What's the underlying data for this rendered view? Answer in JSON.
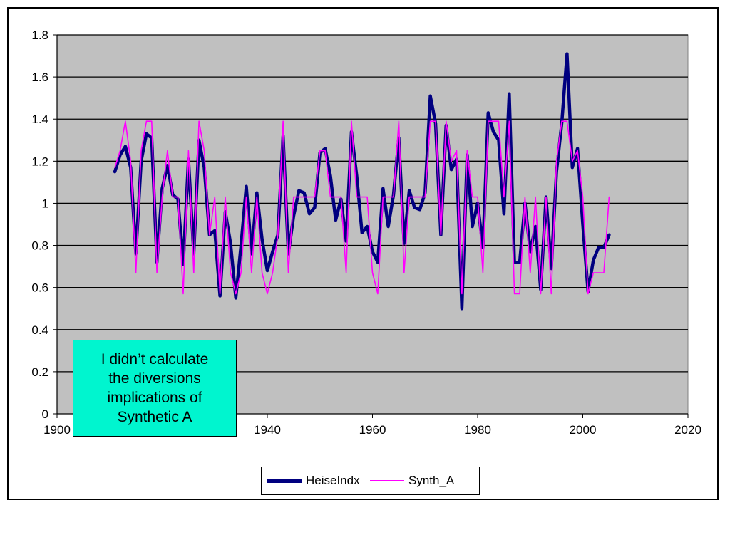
{
  "chart_data": {
    "type": "line",
    "xlim": [
      1900,
      2020
    ],
    "ylim": [
      0,
      1.8
    ],
    "x_ticks": [
      "1900",
      "1920",
      "1940",
      "1960",
      "1980",
      "2000",
      "2020"
    ],
    "y_ticks": [
      "0",
      "0.2",
      "0.4",
      "0.6",
      "0.8",
      "1",
      "1.2",
      "1.4",
      "1.6",
      "1.8"
    ],
    "grid": "horizontal",
    "plot_background": "#c0c0c0",
    "legend_position": "bottom",
    "series": [
      {
        "name": "HeiseIndx",
        "color": "#000080",
        "line_width": 4.5,
        "x": [
          1911,
          1912,
          1913,
          1914,
          1915,
          1916,
          1917,
          1918,
          1919,
          1920,
          1921,
          1922,
          1923,
          1924,
          1925,
          1926,
          1927,
          1928,
          1929,
          1930,
          1931,
          1932,
          1933,
          1934,
          1935,
          1936,
          1937,
          1938,
          1939,
          1940,
          1941,
          1942,
          1943,
          1944,
          1945,
          1946,
          1947,
          1948,
          1949,
          1950,
          1951,
          1952,
          1953,
          1954,
          1955,
          1956,
          1957,
          1958,
          1959,
          1960,
          1961,
          1962,
          1963,
          1964,
          1965,
          1966,
          1967,
          1968,
          1969,
          1970,
          1971,
          1972,
          1973,
          1974,
          1975,
          1976,
          1977,
          1978,
          1979,
          1980,
          1981,
          1982,
          1983,
          1984,
          1985,
          1986,
          1987,
          1988,
          1989,
          1990,
          1991,
          1992,
          1993,
          1994,
          1995,
          1996,
          1997,
          1998,
          1999,
          2000,
          2001,
          2002,
          2003,
          2004,
          2005
        ],
        "values": [
          1.15,
          1.23,
          1.27,
          1.17,
          0.76,
          1.2,
          1.33,
          1.31,
          0.72,
          1.07,
          1.18,
          1.04,
          1.02,
          0.71,
          1.21,
          0.76,
          1.3,
          1.17,
          0.85,
          0.87,
          0.56,
          0.96,
          0.81,
          0.55,
          0.8,
          1.08,
          0.76,
          1.05,
          0.83,
          0.68,
          0.77,
          0.85,
          1.32,
          0.76,
          0.94,
          1.06,
          1.05,
          0.95,
          0.98,
          1.24,
          1.26,
          1.13,
          0.92,
          1.02,
          0.82,
          1.34,
          1.13,
          0.86,
          0.89,
          0.77,
          0.72,
          1.07,
          0.89,
          1.04,
          1.31,
          0.81,
          1.06,
          0.98,
          0.97,
          1.05,
          1.51,
          1.38,
          0.85,
          1.37,
          1.16,
          1.21,
          0.5,
          1.23,
          0.89,
          1.0,
          0.79,
          1.43,
          1.34,
          1.3,
          0.95,
          1.52,
          0.72,
          0.72,
          1.0,
          0.77,
          0.89,
          0.59,
          1.03,
          0.69,
          1.15,
          1.38,
          1.71,
          1.17,
          1.26,
          0.9,
          0.58,
          0.73,
          0.79,
          0.79,
          0.85
        ]
      },
      {
        "name": "Synth_A",
        "color": "#ff00ff",
        "line_width": 1.6,
        "x": [
          1911,
          1912,
          1913,
          1914,
          1915,
          1916,
          1917,
          1918,
          1919,
          1920,
          1921,
          1922,
          1923,
          1924,
          1925,
          1926,
          1927,
          1928,
          1929,
          1930,
          1931,
          1932,
          1933,
          1934,
          1935,
          1936,
          1937,
          1938,
          1939,
          1940,
          1941,
          1942,
          1943,
          1944,
          1945,
          1946,
          1947,
          1948,
          1949,
          1950,
          1951,
          1952,
          1953,
          1954,
          1955,
          1956,
          1957,
          1958,
          1959,
          1960,
          1961,
          1962,
          1963,
          1964,
          1965,
          1966,
          1967,
          1968,
          1969,
          1970,
          1971,
          1972,
          1973,
          1974,
          1975,
          1976,
          1977,
          1978,
          1979,
          1980,
          1981,
          1982,
          1983,
          1984,
          1985,
          1986,
          1987,
          1988,
          1989,
          1990,
          1991,
          1992,
          1993,
          1994,
          1995,
          1996,
          1997,
          1998,
          1999,
          2000,
          2001,
          2002,
          2003,
          2004,
          2005
        ],
        "values": [
          1.17,
          1.25,
          1.39,
          1.2,
          0.67,
          1.25,
          1.39,
          1.39,
          0.67,
          1.03,
          1.25,
          1.03,
          1.03,
          0.57,
          1.25,
          0.67,
          1.39,
          1.25,
          0.85,
          1.03,
          0.57,
          1.03,
          0.67,
          0.57,
          0.67,
          1.03,
          0.67,
          1.03,
          0.67,
          0.57,
          0.67,
          0.85,
          1.39,
          0.67,
          1.03,
          1.03,
          1.03,
          1.03,
          1.03,
          1.25,
          1.25,
          1.03,
          1.03,
          1.03,
          0.67,
          1.39,
          1.03,
          1.03,
          1.03,
          0.67,
          0.57,
          1.03,
          1.03,
          1.03,
          1.39,
          0.67,
          1.03,
          1.03,
          1.03,
          1.03,
          1.39,
          1.39,
          0.85,
          1.39,
          1.2,
          1.25,
          0.57,
          1.25,
          1.03,
          1.03,
          0.67,
          1.39,
          1.39,
          1.39,
          1.03,
          1.39,
          0.57,
          0.57,
          1.03,
          0.67,
          1.03,
          0.57,
          1.03,
          0.57,
          1.2,
          1.39,
          1.39,
          1.2,
          1.25,
          1.03,
          0.57,
          0.67,
          0.67,
          0.67,
          1.03
        ]
      }
    ]
  },
  "callout": {
    "lines": [
      "I didn’t calculate",
      "the diversions",
      "implications of",
      "Synthetic A"
    ],
    "background": "#00f5cf"
  },
  "legend": {
    "items": [
      {
        "label": "HeiseIndx",
        "color": "#000080"
      },
      {
        "label": "Synth_A",
        "color": "#ff00ff"
      }
    ]
  }
}
